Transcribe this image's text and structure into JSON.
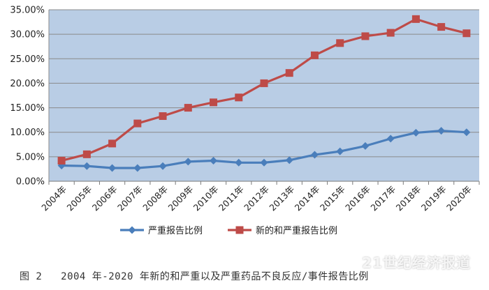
{
  "chart_data": {
    "type": "line",
    "categories": [
      "2004年",
      "2005年",
      "2006年",
      "2007年",
      "2008年",
      "2009年",
      "2010年",
      "2011年",
      "2012年",
      "2013年",
      "2014年",
      "2015年",
      "2016年",
      "2017年",
      "2018年",
      "2019年",
      "2020年"
    ],
    "series": [
      {
        "name": "严重报告比例",
        "color": "#4a7ebb",
        "marker": "diamond",
        "values": [
          3.2,
          3.1,
          2.7,
          2.7,
          3.1,
          4.0,
          4.2,
          3.8,
          3.8,
          4.3,
          5.4,
          6.1,
          7.2,
          8.7,
          9.9,
          10.3,
          10.0
        ]
      },
      {
        "name": "新的和严重报告比例",
        "color": "#be4b48",
        "marker": "square",
        "values": [
          4.2,
          5.5,
          7.7,
          11.8,
          13.3,
          15.0,
          16.1,
          17.1,
          20.0,
          22.1,
          25.7,
          28.2,
          29.6,
          30.3,
          33.1,
          31.5,
          30.2
        ]
      }
    ],
    "ylim": [
      0,
      35
    ],
    "ytick_step": 5,
    "ytick_format": "percent_2dp",
    "grid": "horizontal",
    "plot_background": "#b9cde5",
    "legend_position": "bottom"
  },
  "caption": "图 2   2004 年-2020 年新的和严重以及严重药品不良反应/事件报告比例",
  "watermark": "21世纪经济报道"
}
